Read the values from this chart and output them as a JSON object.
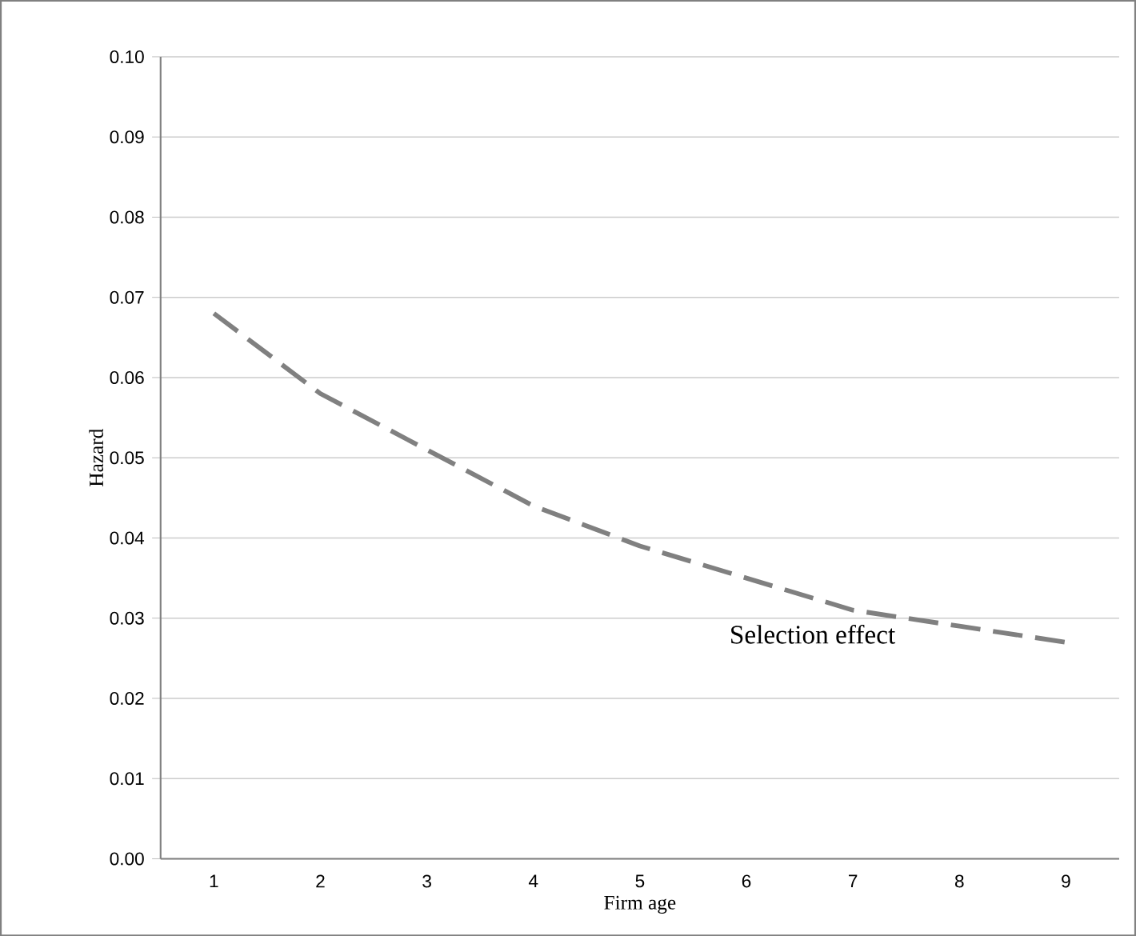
{
  "chart_data": {
    "type": "line",
    "xlabel": "Firm age",
    "ylabel": "Hazard",
    "categories": [
      "1",
      "2",
      "3",
      "4",
      "5",
      "6",
      "7",
      "8",
      "9"
    ],
    "series": [
      {
        "color": "#808080",
        "values": [
          0.068,
          0.058,
          0.051,
          0.044,
          0.039,
          0.035,
          0.031,
          0.029,
          0.027
        ]
      }
    ],
    "line_style": "dashed",
    "marker": "none",
    "grid": "y",
    "ylim": [
      0,
      0.1
    ],
    "yticks": [
      {
        "value": 0,
        "label": "0.00"
      },
      {
        "value": 0.01,
        "label": "0.01"
      },
      {
        "value": 0.02,
        "label": "0.02"
      },
      {
        "value": 0.03,
        "label": "0.03"
      },
      {
        "value": 0.04,
        "label": "0.04"
      },
      {
        "value": 0.05,
        "label": "0.05"
      },
      {
        "value": 0.06,
        "label": "0.06"
      },
      {
        "value": 0.07,
        "label": "0.07"
      },
      {
        "value": 0.08,
        "label": "0.08"
      },
      {
        "value": 0.09,
        "label": "0.09"
      },
      {
        "value": 0.1,
        "label": "0.10"
      }
    ],
    "annotations": [
      "Selection effect"
    ]
  }
}
